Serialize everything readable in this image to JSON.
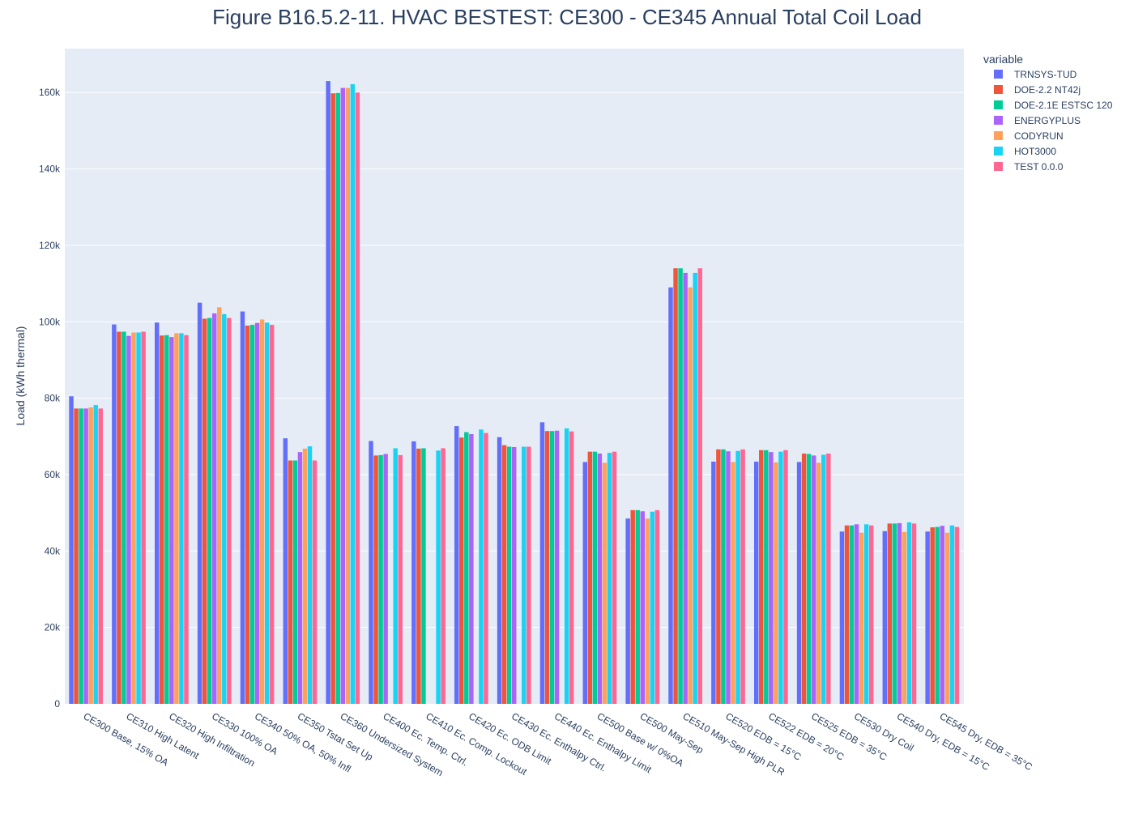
{
  "chart_data": {
    "type": "bar",
    "title": "Figure B16.5.2-11. HVAC BESTEST: CE300 - CE345 Annual Total Coil Load",
    "xlabel": "",
    "ylabel": "Load  (kWh thermal)",
    "ylim": [
      0,
      171500
    ],
    "yticks": [
      0,
      20000,
      40000,
      60000,
      80000,
      100000,
      120000,
      140000,
      160000
    ],
    "ytick_labels": [
      "0",
      "20k",
      "40k",
      "60k",
      "80k",
      "100k",
      "120k",
      "140k",
      "160k"
    ],
    "grid": true,
    "legend": {
      "title": "variable",
      "position": "top-right"
    },
    "categories": [
      "CE300 Base, 15% OA",
      "CE310 High Latent",
      "CE320 High Infiltration",
      "CE330 100% OA",
      "CE340 50% OA, 50% Infl",
      "CE350 Tstat Set Up",
      "CE360 Undersized System",
      "CE400 Ec. Temp. Ctrl.",
      "CE410 Ec. Comp. Lockout",
      "CE420 Ec. ODB Limit",
      "CE430 Ec. Enthalpy Ctrl.",
      "CE440 Ec. Enthalpy Limit",
      "CE500 Base w/ 0%OA",
      "CE500 May-Sep",
      "CE510 May-Sep High PLR",
      "CE520 EDB = 15°C",
      "CE522 EDB = 20°C",
      "CE525 EDB = 35°C",
      "CE530 Dry Coil",
      "CE540 Dry, EDB = 15°C",
      "CE545 Dry, EDB = 35°C"
    ],
    "series": [
      {
        "name": "TRNSYS-TUD",
        "color": "#636efa",
        "values": [
          80500,
          99300,
          99800,
          105000,
          102700,
          69500,
          163000,
          68800,
          68700,
          72700,
          69800,
          73700,
          63300,
          48500,
          109000,
          63400,
          63400,
          63300,
          45100,
          45200,
          45100
        ]
      },
      {
        "name": "DOE-2.2 NT42j",
        "color": "#ef553b",
        "values": [
          77300,
          97400,
          96400,
          100800,
          99000,
          63700,
          159800,
          65000,
          66800,
          69700,
          67700,
          71400,
          66000,
          50700,
          114000,
          66600,
          66400,
          65500,
          46700,
          47200,
          46200
        ]
      },
      {
        "name": "DOE-2.1E ESTSC 120",
        "color": "#00cc96",
        "values": [
          77300,
          97400,
          96500,
          101000,
          99200,
          63700,
          159900,
          65100,
          66900,
          71100,
          67300,
          71400,
          66000,
          50700,
          114000,
          66600,
          66400,
          65400,
          46700,
          47200,
          46300
        ]
      },
      {
        "name": "ENERGYPLUS",
        "color": "#ab63fa",
        "values": [
          77300,
          96300,
          96000,
          102200,
          99700,
          65900,
          161200,
          65400,
          null,
          70600,
          67200,
          71500,
          65500,
          50400,
          112800,
          66100,
          65900,
          65000,
          47000,
          47300,
          46600
        ]
      },
      {
        "name": "CODYRUN",
        "color": "#ffa15a",
        "values": [
          77600,
          97200,
          97000,
          103800,
          100600,
          66800,
          161200,
          null,
          null,
          null,
          null,
          null,
          63100,
          48500,
          109000,
          63300,
          63200,
          63100,
          44800,
          45000,
          44800
        ]
      },
      {
        "name": "HOT3000",
        "color": "#19d3f3",
        "values": [
          78200,
          97200,
          97000,
          102000,
          99800,
          67400,
          162200,
          66900,
          66300,
          71800,
          67300,
          72100,
          65700,
          50300,
          112800,
          66200,
          66000,
          65200,
          47000,
          47500,
          46700
        ]
      },
      {
        "name": "TEST 0.0.0",
        "color": "#ff6692",
        "values": [
          77300,
          97400,
          96500,
          101000,
          99200,
          63700,
          160000,
          65100,
          66900,
          70900,
          67300,
          71300,
          66000,
          50700,
          114000,
          66600,
          66400,
          65500,
          46700,
          47200,
          46300
        ]
      }
    ]
  }
}
